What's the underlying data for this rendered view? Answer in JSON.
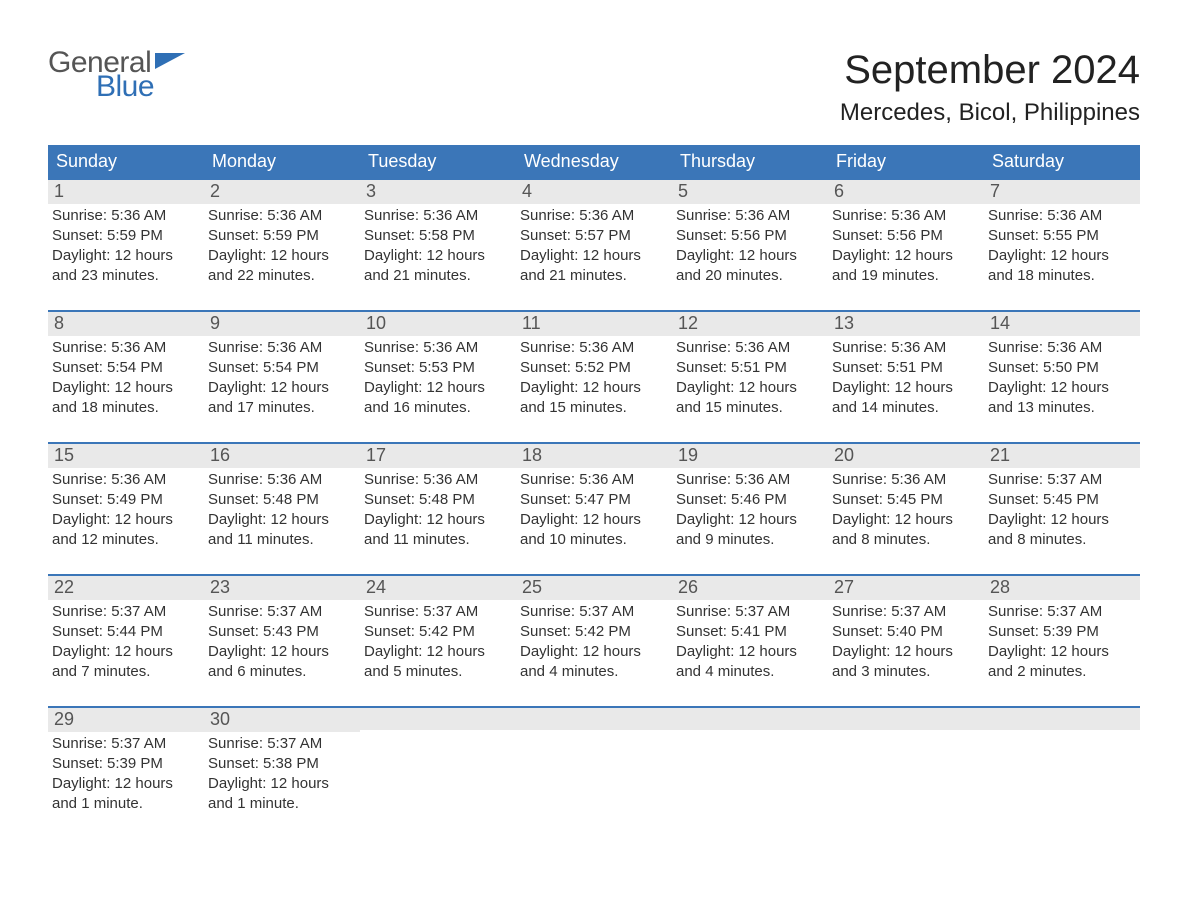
{
  "logo": {
    "text1": "General",
    "text2": "Blue"
  },
  "title": "September 2024",
  "location": "Mercedes, Bicol, Philippines",
  "colors": {
    "header_blue": "#3b76b8",
    "daynum_bg": "#e9e9e9",
    "body_text": "#333333",
    "logo_gray": "#555555",
    "logo_blue": "#2f6fb5",
    "background": "#ffffff"
  },
  "typography": {
    "title_fontsize": 40,
    "location_fontsize": 24,
    "weekday_fontsize": 18,
    "daynum_fontsize": 18,
    "body_fontsize": 15,
    "logo_fontsize": 30,
    "font_family": "Arial"
  },
  "weekdays": [
    "Sunday",
    "Monday",
    "Tuesday",
    "Wednesday",
    "Thursday",
    "Friday",
    "Saturday"
  ],
  "labels": {
    "sunrise": "Sunrise:",
    "sunset": "Sunset:",
    "daylight": "Daylight:"
  },
  "weeks": [
    [
      {
        "n": "1",
        "sunrise": "5:36 AM",
        "sunset": "5:59 PM",
        "daylight": "12 hours and 23 minutes."
      },
      {
        "n": "2",
        "sunrise": "5:36 AM",
        "sunset": "5:59 PM",
        "daylight": "12 hours and 22 minutes."
      },
      {
        "n": "3",
        "sunrise": "5:36 AM",
        "sunset": "5:58 PM",
        "daylight": "12 hours and 21 minutes."
      },
      {
        "n": "4",
        "sunrise": "5:36 AM",
        "sunset": "5:57 PM",
        "daylight": "12 hours and 21 minutes."
      },
      {
        "n": "5",
        "sunrise": "5:36 AM",
        "sunset": "5:56 PM",
        "daylight": "12 hours and 20 minutes."
      },
      {
        "n": "6",
        "sunrise": "5:36 AM",
        "sunset": "5:56 PM",
        "daylight": "12 hours and 19 minutes."
      },
      {
        "n": "7",
        "sunrise": "5:36 AM",
        "sunset": "5:55 PM",
        "daylight": "12 hours and 18 minutes."
      }
    ],
    [
      {
        "n": "8",
        "sunrise": "5:36 AM",
        "sunset": "5:54 PM",
        "daylight": "12 hours and 18 minutes."
      },
      {
        "n": "9",
        "sunrise": "5:36 AM",
        "sunset": "5:54 PM",
        "daylight": "12 hours and 17 minutes."
      },
      {
        "n": "10",
        "sunrise": "5:36 AM",
        "sunset": "5:53 PM",
        "daylight": "12 hours and 16 minutes."
      },
      {
        "n": "11",
        "sunrise": "5:36 AM",
        "sunset": "5:52 PM",
        "daylight": "12 hours and 15 minutes."
      },
      {
        "n": "12",
        "sunrise": "5:36 AM",
        "sunset": "5:51 PM",
        "daylight": "12 hours and 15 minutes."
      },
      {
        "n": "13",
        "sunrise": "5:36 AM",
        "sunset": "5:51 PM",
        "daylight": "12 hours and 14 minutes."
      },
      {
        "n": "14",
        "sunrise": "5:36 AM",
        "sunset": "5:50 PM",
        "daylight": "12 hours and 13 minutes."
      }
    ],
    [
      {
        "n": "15",
        "sunrise": "5:36 AM",
        "sunset": "5:49 PM",
        "daylight": "12 hours and 12 minutes."
      },
      {
        "n": "16",
        "sunrise": "5:36 AM",
        "sunset": "5:48 PM",
        "daylight": "12 hours and 11 minutes."
      },
      {
        "n": "17",
        "sunrise": "5:36 AM",
        "sunset": "5:48 PM",
        "daylight": "12 hours and 11 minutes."
      },
      {
        "n": "18",
        "sunrise": "5:36 AM",
        "sunset": "5:47 PM",
        "daylight": "12 hours and 10 minutes."
      },
      {
        "n": "19",
        "sunrise": "5:36 AM",
        "sunset": "5:46 PM",
        "daylight": "12 hours and 9 minutes."
      },
      {
        "n": "20",
        "sunrise": "5:36 AM",
        "sunset": "5:45 PM",
        "daylight": "12 hours and 8 minutes."
      },
      {
        "n": "21",
        "sunrise": "5:37 AM",
        "sunset": "5:45 PM",
        "daylight": "12 hours and 8 minutes."
      }
    ],
    [
      {
        "n": "22",
        "sunrise": "5:37 AM",
        "sunset": "5:44 PM",
        "daylight": "12 hours and 7 minutes."
      },
      {
        "n": "23",
        "sunrise": "5:37 AM",
        "sunset": "5:43 PM",
        "daylight": "12 hours and 6 minutes."
      },
      {
        "n": "24",
        "sunrise": "5:37 AM",
        "sunset": "5:42 PM",
        "daylight": "12 hours and 5 minutes."
      },
      {
        "n": "25",
        "sunrise": "5:37 AM",
        "sunset": "5:42 PM",
        "daylight": "12 hours and 4 minutes."
      },
      {
        "n": "26",
        "sunrise": "5:37 AM",
        "sunset": "5:41 PM",
        "daylight": "12 hours and 4 minutes."
      },
      {
        "n": "27",
        "sunrise": "5:37 AM",
        "sunset": "5:40 PM",
        "daylight": "12 hours and 3 minutes."
      },
      {
        "n": "28",
        "sunrise": "5:37 AM",
        "sunset": "5:39 PM",
        "daylight": "12 hours and 2 minutes."
      }
    ],
    [
      {
        "n": "29",
        "sunrise": "5:37 AM",
        "sunset": "5:39 PM",
        "daylight": "12 hours and 1 minute."
      },
      {
        "n": "30",
        "sunrise": "5:37 AM",
        "sunset": "5:38 PM",
        "daylight": "12 hours and 1 minute."
      },
      null,
      null,
      null,
      null,
      null
    ]
  ]
}
